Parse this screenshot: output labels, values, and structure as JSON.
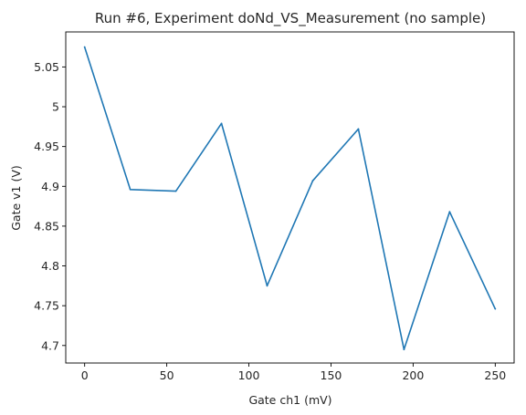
{
  "chart_data": {
    "type": "line",
    "title": "Run #6, Experiment doNd_VS_Measurement (no sample)",
    "xlabel": "Gate ch1 (mV)",
    "ylabel": "Gate v1 (V)",
    "xlim": [
      -11.5,
      261.5
    ],
    "ylim": [
      4.678,
      5.094
    ],
    "xticks": [
      0,
      50,
      100,
      150,
      200,
      250
    ],
    "xtick_labels": [
      "0",
      "50",
      "100",
      "150",
      "200",
      "250"
    ],
    "yticks": [
      4.7,
      4.75,
      4.8,
      4.85,
      4.9,
      4.95,
      5,
      5.05
    ],
    "ytick_labels": [
      "4.7",
      "4.75",
      "4.8",
      "4.85",
      "4.9",
      "4.95",
      "5",
      "5.05"
    ],
    "grid": false,
    "series": [
      {
        "color": "#1f77b4",
        "x": [
          0,
          27.78,
          55.56,
          83.33,
          111.11,
          138.89,
          166.67,
          194.44,
          222.22,
          250
        ],
        "y": [
          5.075,
          4.896,
          4.894,
          4.979,
          4.775,
          4.907,
          4.972,
          4.695,
          4.868,
          4.746
        ]
      }
    ]
  }
}
